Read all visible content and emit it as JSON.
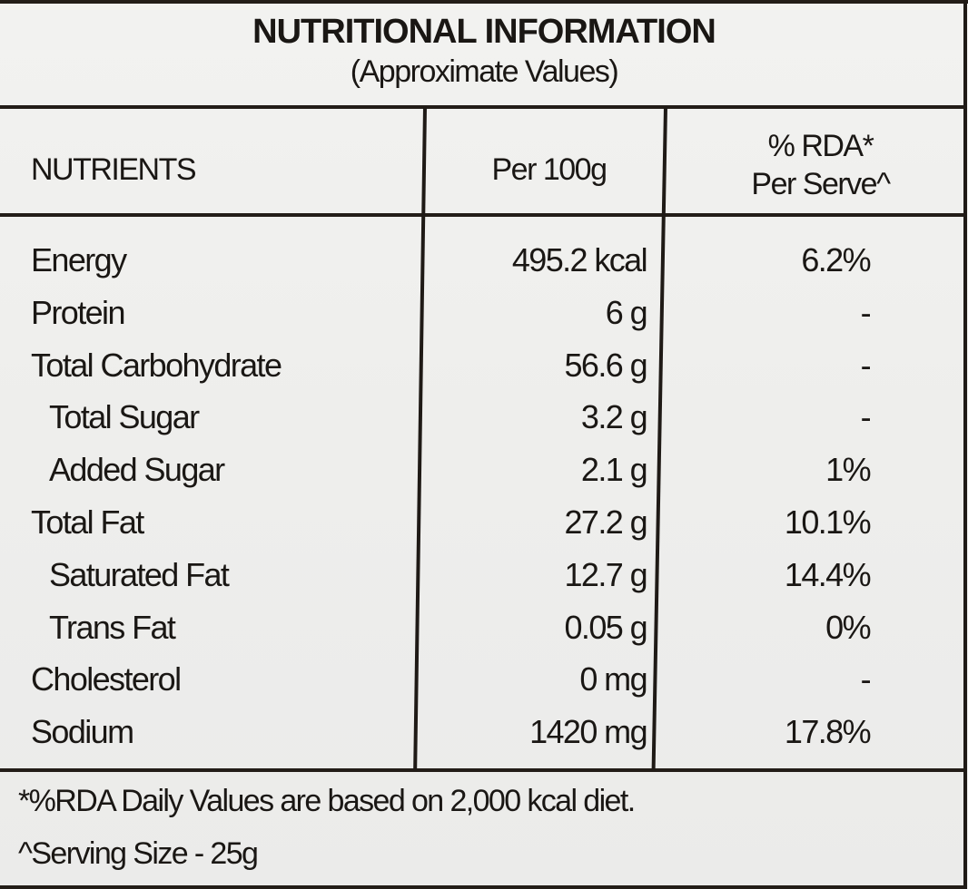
{
  "label": {
    "title": "NUTRITIONAL INFORMATION",
    "subtitle": "(Approximate Values)",
    "columns": {
      "nutrients": "NUTRIENTS",
      "per_100g": "Per 100g",
      "rda_line1": "% RDA*",
      "rda_line2": "Per Serve^"
    },
    "rows": [
      {
        "name": "Energy",
        "per_100g": "495.2 kcal",
        "rda": "6.2%",
        "indent": false
      },
      {
        "name": "Protein",
        "per_100g": "6 g",
        "rda": "-",
        "indent": false
      },
      {
        "name": "Total Carbohydrate",
        "per_100g": "56.6 g",
        "rda": "-",
        "indent": false
      },
      {
        "name": "Total Sugar",
        "per_100g": "3.2 g",
        "rda": "-",
        "indent": true
      },
      {
        "name": "Added Sugar",
        "per_100g": "2.1 g",
        "rda": "1%",
        "indent": true
      },
      {
        "name": "Total Fat",
        "per_100g": "27.2 g",
        "rda": "10.1%",
        "indent": false
      },
      {
        "name": "Saturated Fat",
        "per_100g": "12.7 g",
        "rda": "14.4%",
        "indent": true
      },
      {
        "name": "Trans Fat",
        "per_100g": "0.05 g",
        "rda": "0%",
        "indent": true
      },
      {
        "name": "Cholesterol",
        "per_100g": "0 mg",
        "rda": "-",
        "indent": false
      },
      {
        "name": "Sodium",
        "per_100g": "1420 mg",
        "rda": "17.8%",
        "indent": false
      }
    ],
    "footnotes": {
      "rda_note": "*%RDA Daily Values are based on 2,000 kcal diet.",
      "serving_note": "^Serving Size - 25g"
    }
  }
}
